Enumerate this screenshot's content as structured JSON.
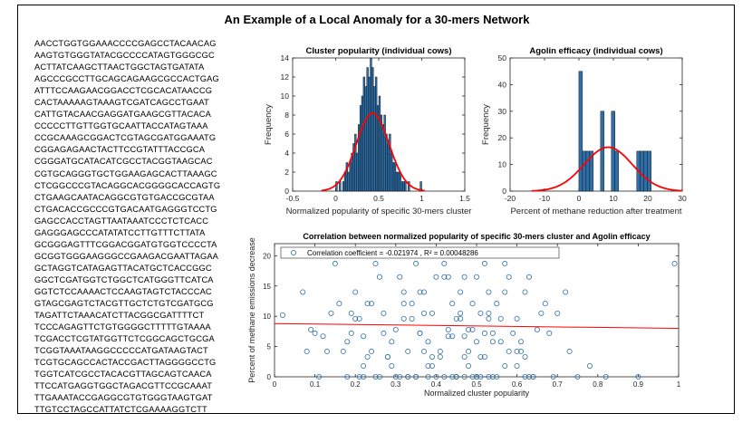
{
  "figure_title": "An Example of a Local Anomaly for a 30-mers Network",
  "sequences": [
    "AACCTGGTGGAAACCCCGAGCCTACAACAG",
    "AAGTGTGGGTATACGCCCCATAGTGGGCGC",
    "ACTTATCAAGCTTAACTGGCTAGTGATATA",
    "AGCCCGCCTTGCAGCAGAAGCGCCACTGAG",
    "ATTTCCAAGAACGGACCTCGCACATAACCG",
    "CACTAAAAAGTAAAGTCGATCAGCCTGAAT",
    "CATTGTACAACGAGGATGAAGCGTTACACA",
    "CCCCCTTGTTGGTGCAATTACCATAGTAAA",
    "CCGCAAAGCGGACTCGTAGCGATGGAAATG",
    "CGGAGAGAACTACTTCCGTATTTACCGCA",
    "CGGGATGCATACATCGCCTACGGTAAGCAC",
    "CGTGCAGGGTGCTGGAAGAGCACTTAAAGC",
    "CTCGGCCCGTACAGGCACGGGGCACCAGTG",
    "CTGAAGCAATACAGGCGTGTGACCGCGTAA",
    "CTGACACCGCCCGTGACAATGAGGGTCCTG",
    "GAGCCACCTAGTTAATAAATCCCTCTCACC",
    "GAGGGAGCCCATATATCCTTGTTTCTTATA",
    "GCGGGAGTTTCGGACGGATGTGGTCCCCTA",
    "GCGGTGGGAAGGGCCGAAGACGAATTAGAA",
    "GCTAGGTCATAGAGTTACATGCTCACCGGC",
    "GGCTCGATGGTCTGGCTCATGGGTTCATCA",
    "GGTCTCCAAAACTCCAAGTAGTCTACCCAC",
    "GTAGCGAGTCTACGTTGCTCTGTCGATGCG",
    "TAGATTCTAAACATCTTACGGCGATTTTCT",
    "TCCCAGAGTTCTGTGGGGCTTTTTGTAAAA",
    "TCGACCTCGTATGGTTCTCGGCAGCTGCGA",
    "TCGGTAAATAAGGCCCCCATGATAAGTACT",
    "TCGTGCAGCCACTACCGACTTAGGGGCCTG",
    "TGGTCATCGCCTACACGTTAGCAGTCAACA",
    "TTCCATGAGGTGGCTAGACGTTCCGCAAAT",
    "TTGAAATACCGAGGCGTGTGGGTAAGTGAT",
    "TTGTCCTAGCCATTATCTCGAAAAGGTCTT"
  ],
  "chart_data": [
    {
      "type": "bar",
      "title": "Cluster popularity (individual cows)",
      "xlabel": "Normalized popularity of specific 30-mers cluster",
      "ylabel": "Frequency",
      "xlim": [
        -0.5,
        1.5
      ],
      "ylim": [
        0,
        14
      ],
      "xticks": [
        "-0.5",
        "0",
        "0.5",
        "1",
        "1.5"
      ],
      "yticks": [
        "0",
        "2",
        "4",
        "6",
        "8",
        "10",
        "12",
        "14"
      ],
      "bar_color": "#2f6fa8",
      "fit_color": "#ff0000",
      "fit": {
        "type": "normal",
        "mean": 0.43,
        "std": 0.19,
        "peak": 8.2
      },
      "bin_width": 0.02,
      "bins": [
        {
          "x": 0.01,
          "y": 1
        },
        {
          "x": 0.05,
          "y": 1
        },
        {
          "x": 0.09,
          "y": 1
        },
        {
          "x": 0.11,
          "y": 2
        },
        {
          "x": 0.13,
          "y": 3
        },
        {
          "x": 0.15,
          "y": 2
        },
        {
          "x": 0.17,
          "y": 3
        },
        {
          "x": 0.19,
          "y": 4
        },
        {
          "x": 0.21,
          "y": 5
        },
        {
          "x": 0.23,
          "y": 6
        },
        {
          "x": 0.25,
          "y": 4
        },
        {
          "x": 0.27,
          "y": 7
        },
        {
          "x": 0.29,
          "y": 9
        },
        {
          "x": 0.31,
          "y": 10
        },
        {
          "x": 0.33,
          "y": 12
        },
        {
          "x": 0.35,
          "y": 11
        },
        {
          "x": 0.37,
          "y": 13
        },
        {
          "x": 0.39,
          "y": 12
        },
        {
          "x": 0.41,
          "y": 14
        },
        {
          "x": 0.43,
          "y": 13
        },
        {
          "x": 0.45,
          "y": 11
        },
        {
          "x": 0.47,
          "y": 12
        },
        {
          "x": 0.49,
          "y": 9
        },
        {
          "x": 0.51,
          "y": 10
        },
        {
          "x": 0.53,
          "y": 8
        },
        {
          "x": 0.55,
          "y": 7
        },
        {
          "x": 0.57,
          "y": 8
        },
        {
          "x": 0.59,
          "y": 6
        },
        {
          "x": 0.61,
          "y": 5
        },
        {
          "x": 0.63,
          "y": 6
        },
        {
          "x": 0.65,
          "y": 4
        },
        {
          "x": 0.67,
          "y": 3
        },
        {
          "x": 0.69,
          "y": 3
        },
        {
          "x": 0.71,
          "y": 2
        },
        {
          "x": 0.73,
          "y": 2
        },
        {
          "x": 0.75,
          "y": 2
        },
        {
          "x": 0.77,
          "y": 1
        },
        {
          "x": 0.79,
          "y": 1
        },
        {
          "x": 0.81,
          "y": 1
        },
        {
          "x": 0.85,
          "y": 1
        },
        {
          "x": 0.99,
          "y": 1
        }
      ]
    },
    {
      "type": "bar",
      "title": "Agolin efficacy (individual cows)",
      "xlabel": "Percent of methane reduction after treatment",
      "ylabel": "Frequency",
      "xlim": [
        -20,
        30
      ],
      "ylim": [
        0,
        50
      ],
      "xticks": [
        "-20",
        "-10",
        "0",
        "10",
        "20",
        "30"
      ],
      "yticks": [
        "0",
        "10",
        "20",
        "30",
        "40",
        "50"
      ],
      "bar_color": "#2f6fa8",
      "fit_color": "#ff0000",
      "fit": {
        "type": "normal",
        "mean": 8.5,
        "std": 7.0,
        "peak": 16.5
      },
      "bin_width": 1.05,
      "bins": [
        {
          "x": 0.5,
          "y": 45
        },
        {
          "x": 1.55,
          "y": 15
        },
        {
          "x": 2.6,
          "y": 15
        },
        {
          "x": 3.65,
          "y": 15
        },
        {
          "x": 6.8,
          "y": 30
        },
        {
          "x": 9.95,
          "y": 30
        },
        {
          "x": 11.0,
          "y": 15
        },
        {
          "x": 17.3,
          "y": 15
        },
        {
          "x": 18.35,
          "y": 15
        },
        {
          "x": 19.4,
          "y": 15
        },
        {
          "x": 20.45,
          "y": 15
        }
      ]
    },
    {
      "type": "scatter",
      "title": "Correlation between normalized popularity of specific 30-mers cluster and Agolin efficacy",
      "xlabel": "Normalized cluster popularity",
      "ylabel": "Percent of methane emissions decrease",
      "xlim": [
        0,
        1
      ],
      "ylim": [
        0,
        22
      ],
      "xticks": [
        "0",
        "0.1",
        "0.2",
        "0.3",
        "0.4",
        "0.5",
        "0.6",
        "0.7",
        "0.8",
        "0.9",
        "1"
      ],
      "yticks": [
        "0",
        "5",
        "10",
        "15",
        "20"
      ],
      "legend": "Correlation coefficient = -0.021974 , R² = 0.00048286",
      "legend_position": "top-left",
      "marker_color": "#2f6fa8",
      "fit_color": "#ff0000",
      "fit_line": {
        "x": [
          0,
          1
        ],
        "y": [
          8.8,
          8.0
        ]
      },
      "level_values": [
        0.0,
        1.8,
        3.3,
        4.2,
        5.8,
        6.7,
        7.2,
        7.8,
        9.6,
        10.5,
        12.1,
        14.0,
        16.5,
        18.7,
        20.8
      ],
      "x": [
        0.02,
        0.07,
        0.09,
        0.12,
        0.15,
        0.19,
        0.2,
        0.21,
        0.22,
        0.23,
        0.24,
        0.26,
        0.27,
        0.28,
        0.29,
        0.31,
        0.32,
        0.33,
        0.34,
        0.35,
        0.36,
        0.37,
        0.38,
        0.39,
        0.41,
        0.42,
        0.43,
        0.44,
        0.45,
        0.46,
        0.47,
        0.48,
        0.49,
        0.5,
        0.52,
        0.53,
        0.54,
        0.55,
        0.57,
        0.58,
        0.6,
        0.62,
        0.63,
        0.65,
        0.67,
        0.7,
        0.72,
        0.75,
        0.78,
        0.82,
        0.9,
        0.99,
        0.11,
        0.16,
        0.25,
        0.3,
        0.4,
        0.51,
        0.56,
        0.64,
        0.08,
        0.18,
        0.28,
        0.33,
        0.38,
        0.45,
        0.48,
        0.52,
        0.59,
        0.66,
        0.1,
        0.22,
        0.27,
        0.35,
        0.43,
        0.47,
        0.5,
        0.55,
        0.61,
        0.69,
        0.14,
        0.24,
        0.32,
        0.37,
        0.42,
        0.46,
        0.49,
        0.54,
        0.58,
        0.63,
        0.73,
        0.19,
        0.26,
        0.31,
        0.36,
        0.41,
        0.44,
        0.5,
        0.53,
        0.57,
        0.62,
        0.68,
        0.13,
        0.21,
        0.29,
        0.34,
        0.39,
        0.45,
        0.48,
        0.51,
        0.56,
        0.6,
        0.17,
        0.23,
        0.3,
        0.36,
        0.41,
        0.44,
        0.47,
        0.52,
        0.55,
        0.6,
        0.64,
        0.2,
        0.28,
        0.32,
        0.38,
        0.43,
        0.46,
        0.49,
        0.53,
        0.58,
        0.18,
        0.25,
        0.33,
        0.4,
        0.44,
        0.5,
        0.54,
        0.57,
        0.62,
        0.3,
        0.37,
        0.42,
        0.47,
        0.51,
        0.61,
        0.22,
        0.35,
        0.45,
        0.53,
        0.39
      ],
      "y": [
        10.2,
        14.0,
        7.8,
        6.7,
        18.7,
        10.5,
        9.6,
        0.0,
        1.8,
        3.3,
        12.1,
        16.5,
        7.2,
        20.8,
        5.8,
        0.0,
        9.6,
        4.2,
        12.1,
        18.7,
        7.2,
        14.0,
        0.0,
        10.5,
        3.3,
        16.5,
        6.7,
        20.8,
        9.6,
        14.0,
        0.0,
        1.8,
        12.1,
        5.8,
        18.7,
        9.6,
        7.2,
        0.0,
        14.0,
        20.8,
        9.6,
        3.3,
        16.5,
        7.8,
        12.1,
        10.5,
        14.0,
        0.0,
        1.8,
        0.0,
        0.0,
        18.7,
        0.0,
        12.1,
        0.0,
        7.8,
        0.0,
        0.0,
        5.8,
        0.0,
        4.2,
        0.0,
        3.3,
        0.0,
        1.8,
        0.0,
        4.2,
        3.3,
        7.2,
        10.5,
        7.2,
        0.0,
        10.5,
        0.0,
        7.8,
        3.3,
        0.0,
        12.1,
        4.2,
        0.0,
        10.5,
        4.2,
        14.0,
        4.2,
        0.0,
        10.5,
        7.8,
        0.0,
        4.2,
        0.0,
        4.2,
        7.2,
        0.0,
        16.5,
        7.2,
        4.2,
        12.1,
        16.5,
        0.0,
        18.7,
        14.0,
        7.2,
        4.2,
        9.6,
        1.8,
        9.6,
        3.3,
        0.0,
        7.8,
        3.3,
        9.6,
        1.8,
        4.2,
        12.1,
        0.0,
        14.0,
        20.8,
        0.0,
        16.5,
        7.2,
        20.8,
        4.2,
        0.0,
        14.0,
        3.3,
        12.1,
        5.8,
        16.5,
        9.6,
        0.0,
        14.0,
        16.5,
        5.8,
        18.7,
        0.0,
        16.5,
        6.7,
        0.0,
        5.8,
        1.8,
        0.0,
        20.8,
        10.5,
        18.7,
        6.7,
        10.5,
        5.8,
        6.7,
        0.0,
        0.0,
        10.5,
        1.8
      ]
    }
  ]
}
